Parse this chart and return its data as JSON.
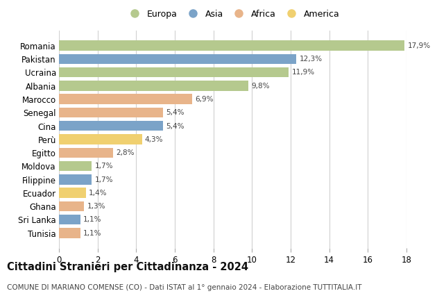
{
  "categories": [
    "Romania",
    "Pakistan",
    "Ucraina",
    "Albania",
    "Marocco",
    "Senegal",
    "Cina",
    "Perù",
    "Egitto",
    "Moldova",
    "Filippine",
    "Ecuador",
    "Ghana",
    "Sri Lanka",
    "Tunisia"
  ],
  "values": [
    17.9,
    12.3,
    11.9,
    9.8,
    6.9,
    5.4,
    5.4,
    4.3,
    2.8,
    1.7,
    1.7,
    1.4,
    1.3,
    1.1,
    1.1
  ],
  "labels": [
    "17,9%",
    "12,3%",
    "11,9%",
    "9,8%",
    "6,9%",
    "5,4%",
    "5,4%",
    "4,3%",
    "2,8%",
    "1,7%",
    "1,7%",
    "1,4%",
    "1,3%",
    "1,1%",
    "1,1%"
  ],
  "continents": [
    "Europa",
    "Asia",
    "Europa",
    "Europa",
    "Africa",
    "Africa",
    "Asia",
    "America",
    "Africa",
    "Europa",
    "Asia",
    "America",
    "Africa",
    "Asia",
    "Africa"
  ],
  "continent_colors": {
    "Europa": "#b5c98e",
    "Asia": "#7ba3c8",
    "Africa": "#e8b48a",
    "America": "#f0d070"
  },
  "legend_order": [
    "Europa",
    "Asia",
    "Africa",
    "America"
  ],
  "title": "Cittadini Stranieri per Cittadinanza - 2024",
  "subtitle": "COMUNE DI MARIANO COMENSE (CO) - Dati ISTAT al 1° gennaio 2024 - Elaborazione TUTTITALIA.IT",
  "xlim": [
    0,
    18
  ],
  "xticks": [
    0,
    2,
    4,
    6,
    8,
    10,
    12,
    14,
    16,
    18
  ],
  "bg_color": "#ffffff",
  "grid_color": "#d0d0d0",
  "bar_height": 0.75,
  "label_fontsize": 7.5,
  "title_fontsize": 10.5,
  "subtitle_fontsize": 7.5,
  "tick_fontsize": 8.5,
  "category_fontsize": 8.5
}
